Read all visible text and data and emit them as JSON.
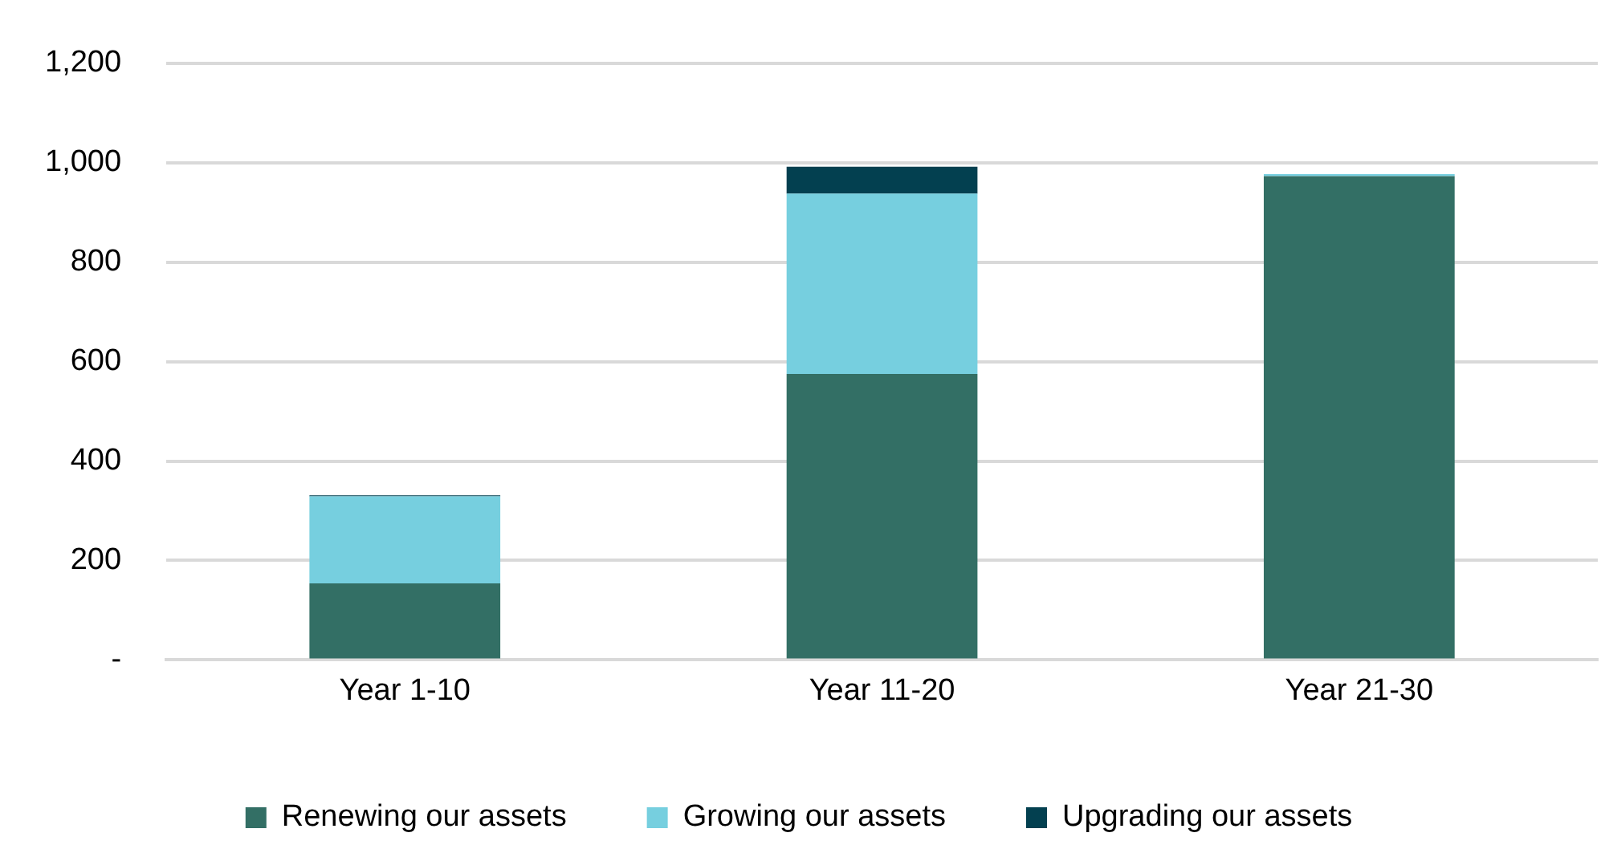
{
  "chart_data": {
    "type": "bar",
    "stacked": true,
    "categories": [
      "Year 1-10",
      "Year 11-20",
      "Year 21-30"
    ],
    "series": [
      {
        "name": "Renewing our assets",
        "color": "#336f65",
        "values": [
          154,
          575,
          973
        ]
      },
      {
        "name": "Growing our assets",
        "color": "#76cfdf",
        "values": [
          175,
          363,
          4
        ]
      },
      {
        "name": "Upgrading our assets",
        "color": "#034050",
        "values": [
          2,
          54,
          0
        ]
      }
    ],
    "ylim": [
      0,
      1200
    ],
    "yticks": [
      {
        "value": 0,
        "label": "-"
      },
      200,
      400,
      600,
      800,
      {
        "value": 1000,
        "label": "1,000"
      },
      {
        "value": 1200,
        "label": "1,200"
      }
    ],
    "grid": "y",
    "legend": "bottom"
  }
}
